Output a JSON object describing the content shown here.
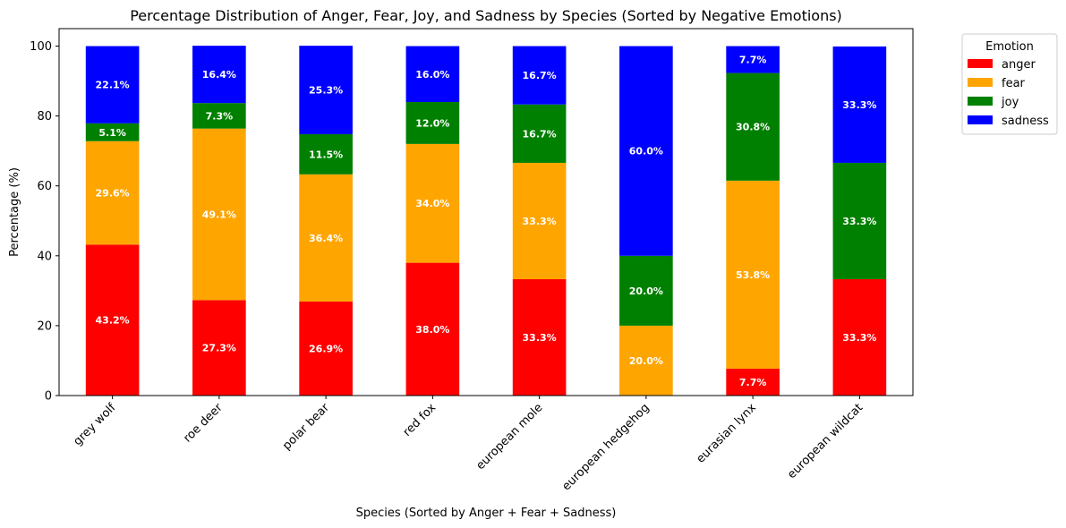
{
  "chart_data": {
    "type": "bar",
    "stacked": true,
    "title": "Percentage Distribution of Anger, Fear, Joy, and Sadness by Species (Sorted by Negative Emotions)",
    "xlabel": "Species (Sorted by Anger + Fear + Sadness)",
    "ylabel": "Percentage (%)",
    "ylim": [
      0,
      105
    ],
    "yticks": [
      0,
      20,
      40,
      60,
      80,
      100
    ],
    "grid": false,
    "legend": {
      "title": "Emotion",
      "placement": "outside-top-right"
    },
    "categories": [
      "grey wolf",
      "roe deer",
      "polar bear",
      "red fox",
      "european mole",
      "european hedgehog",
      "eurasian lynx",
      "european wildcat"
    ],
    "series": [
      {
        "name": "anger",
        "color": "#ff0000",
        "values": [
          43.2,
          27.3,
          26.9,
          38.0,
          33.3,
          0.0,
          7.7,
          33.3
        ],
        "labels": [
          "43.2%",
          "27.3%",
          "26.9%",
          "38.0%",
          "33.3%",
          "",
          "7.7%",
          "33.3%"
        ]
      },
      {
        "name": "fear",
        "color": "#ffa500",
        "values": [
          29.6,
          49.1,
          36.4,
          34.0,
          33.3,
          20.0,
          53.8,
          0.0
        ],
        "labels": [
          "29.6%",
          "49.1%",
          "36.4%",
          "34.0%",
          "33.3%",
          "20.0%",
          "53.8%",
          ""
        ]
      },
      {
        "name": "joy",
        "color": "#008000",
        "values": [
          5.1,
          7.3,
          11.5,
          12.0,
          16.7,
          20.0,
          30.8,
          33.3
        ],
        "labels": [
          "5.1%",
          "7.3%",
          "11.5%",
          "12.0%",
          "16.7%",
          "20.0%",
          "30.8%",
          "33.3%"
        ]
      },
      {
        "name": "sadness",
        "color": "#0000ff",
        "values": [
          22.1,
          16.4,
          25.3,
          16.0,
          16.7,
          60.0,
          7.7,
          33.3
        ],
        "labels": [
          "22.1%",
          "16.4%",
          "25.3%",
          "16.0%",
          "16.7%",
          "60.0%",
          "7.7%",
          "33.3%"
        ]
      }
    ]
  }
}
